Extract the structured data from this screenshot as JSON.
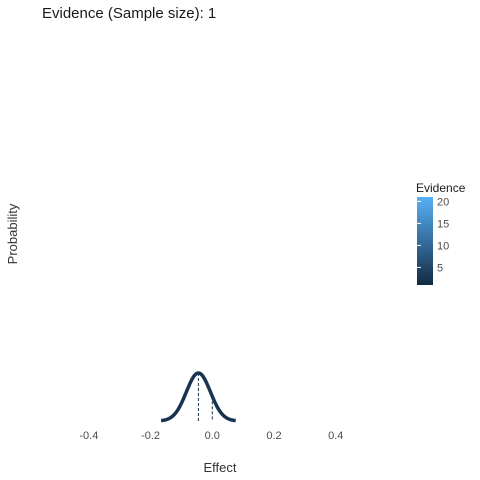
{
  "chart_data": {
    "type": "line",
    "title": "Evidence (Sample size): 1",
    "xlabel": "Effect",
    "ylabel": "Probability",
    "xlim": [
      -0.5,
      0.55
    ],
    "x_ticks": [
      -0.4,
      -0.2,
      0.0,
      0.2,
      0.4
    ],
    "x_tick_labels": [
      "-0.4",
      "-0.2",
      "0.0",
      "0.2",
      "0.4"
    ],
    "grid": false,
    "series": [
      {
        "mean": -0.045,
        "sd": 0.039,
        "color": "#1a3350"
      }
    ],
    "reference_lines": [
      {
        "x": -0.045,
        "style": "dashed"
      },
      {
        "x": 0.0,
        "style": "dashed"
      }
    ],
    "legend": {
      "title": "Evidence",
      "placement": "right",
      "ticks": [
        "5",
        "10",
        "15",
        "20"
      ],
      "tick_values": [
        5,
        10,
        15,
        20
      ],
      "range": [
        1,
        21
      ],
      "color_low": "#132b43",
      "color_high": "#56b1f7"
    }
  }
}
